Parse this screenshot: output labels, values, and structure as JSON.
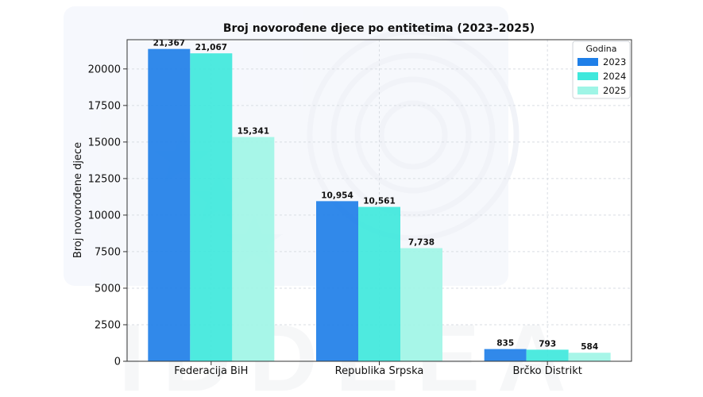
{
  "chart_data": {
    "type": "bar",
    "title": "Broj novorođene djece po entitetima (2023–2025)",
    "xlabel": "",
    "ylabel": "Broj novorođene djece",
    "categories": [
      "Federacija BiH",
      "Republika Srpska",
      "Brčko Distrikt"
    ],
    "series": [
      {
        "name": "2023",
        "values": [
          21367,
          10954,
          835
        ],
        "labels": [
          "21,367",
          "10,954",
          "835"
        ],
        "color": "#1f7fe8"
      },
      {
        "name": "2024",
        "values": [
          21067,
          10561,
          793
        ],
        "labels": [
          "21,067",
          "10,561",
          "793"
        ],
        "color": "#3fe8dc"
      },
      {
        "name": "2025",
        "values": [
          15341,
          7738,
          584
        ],
        "labels": [
          "15,341",
          "7,738",
          "584"
        ],
        "color": "#9ff5e6"
      }
    ],
    "ylim": [
      0,
      22000
    ],
    "yticks": [
      0,
      2500,
      5000,
      7500,
      10000,
      12500,
      15000,
      17500,
      20000
    ],
    "ytick_labels": [
      "0",
      "2500",
      "5000",
      "7500",
      "10000",
      "12500",
      "15000",
      "17500",
      "20000"
    ],
    "grid": true,
    "legend": {
      "title": "Godina",
      "position": "top-right"
    }
  },
  "watermark": {
    "text": "IDDEEA"
  }
}
